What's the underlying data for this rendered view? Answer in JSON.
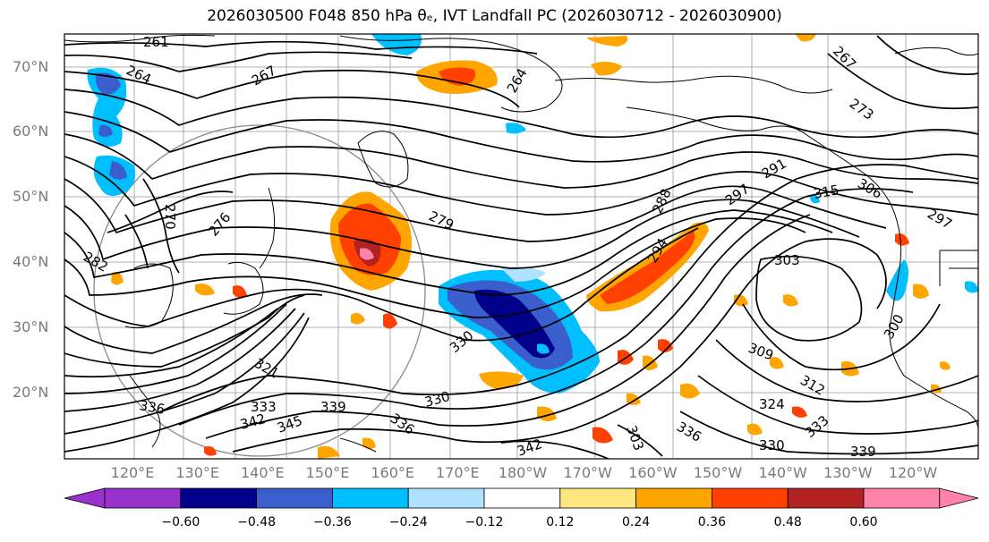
{
  "title": "2026030500 F048 850 hPa θₑ, IVT Landfall PC (2026030712 - 2026030900)",
  "map": {
    "lat_labels": [
      "70°N",
      "60°N",
      "50°N",
      "40°N",
      "30°N",
      "20°N"
    ],
    "lon_labels": [
      "120°E",
      "130°E",
      "140°E",
      "150°E",
      "160°E",
      "170°E",
      "180°W",
      "170°W",
      "160°W",
      "150°W",
      "140°W",
      "130°W",
      "120°W"
    ],
    "contour_labels": [
      "261",
      "264",
      "267",
      "264",
      "267",
      "273",
      "270",
      "276",
      "279",
      "282",
      "288",
      "294",
      "291",
      "297",
      "306",
      "315",
      "297",
      "303",
      "300",
      "309",
      "312",
      "324",
      "330",
      "333",
      "336",
      "336",
      "330",
      "339",
      "342",
      "345",
      "333",
      "339",
      "336",
      "342",
      "303",
      "330",
      "321"
    ],
    "field_colors": {
      "purple": "#9932cc",
      "navy": "#00008b",
      "royal_blue": "#3a5fcd",
      "deep_sky": "#00bfff",
      "light_blue": "#b0e2ff",
      "yellow": "#ffe680",
      "orange": "#ffa500",
      "red_orange": "#ff4000",
      "dark_red": "#b22222",
      "pink": "#ff82ab"
    }
  },
  "colorbar": {
    "ticks": [
      "−0.60",
      "−0.48",
      "−0.36",
      "−0.24",
      "−0.12",
      "0.12",
      "0.24",
      "0.36",
      "0.48",
      "0.60"
    ],
    "colors": [
      "#9932cc",
      "#00008b",
      "#3a5fcd",
      "#00bfff",
      "#b0e2ff",
      "#ffffff",
      "#ffe680",
      "#ffa500",
      "#ff4000",
      "#b22222",
      "#ff82ab"
    ]
  }
}
